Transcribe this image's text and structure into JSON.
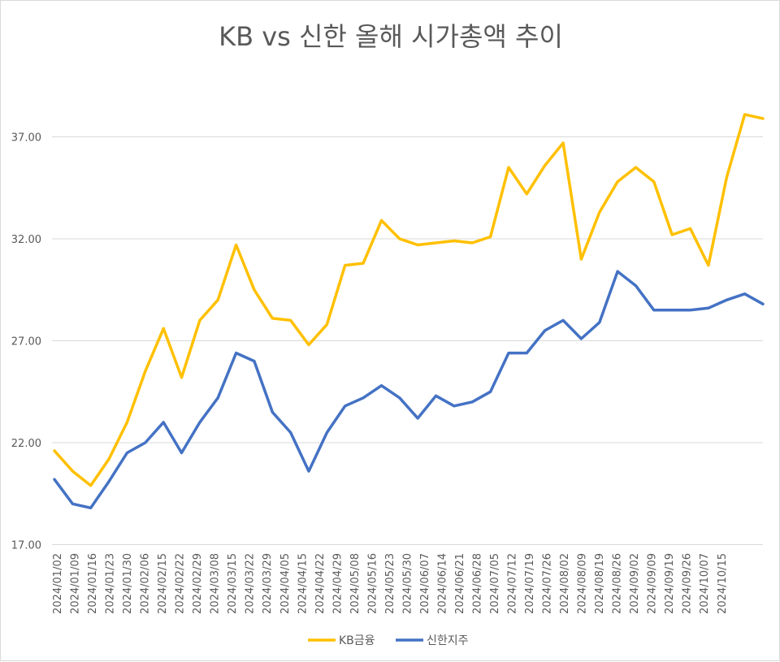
{
  "chart_data": {
    "type": "line",
    "title": "KB vs 신한 올해 시가총액 추이",
    "xlabel": "",
    "ylabel": "",
    "ylim": [
      17,
      39
    ],
    "yticks": [
      17,
      22,
      27,
      32,
      37
    ],
    "ytick_labels": [
      "17.00",
      "22.00",
      "27.00",
      "32.00",
      "37.00"
    ],
    "grid": true,
    "legend": "bottom",
    "categories": [
      "2024/01/02",
      "2024/01/09",
      "2024/01/16",
      "2024/01/23",
      "2024/01/30",
      "2024/02/06",
      "2024/02/15",
      "2024/02/22",
      "2024/02/29",
      "2024/03/08",
      "2024/03/15",
      "2024/03/22",
      "2024/03/29",
      "2024/04/05",
      "2024/04/15",
      "2024/04/22",
      "2024/04/29",
      "2024/05/08",
      "2024/05/16",
      "2024/05/23",
      "2024/05/30",
      "2024/06/07",
      "2024/06/14",
      "2024/06/21",
      "2024/06/28",
      "2024/07/05",
      "2024/07/12",
      "2024/07/19",
      "2024/07/26",
      "2024/08/02",
      "2024/08/09",
      "2024/08/19",
      "2024/08/26",
      "2024/09/02",
      "2024/09/09",
      "2024/09/19",
      "2024/09/26",
      "2024/10/07",
      "2024/10/15"
    ],
    "series": [
      {
        "name": "KB금융",
        "color": "#FFC000",
        "values": [
          21.6,
          20.6,
          19.9,
          21.2,
          23.0,
          25.5,
          27.6,
          25.2,
          28.0,
          29.0,
          31.7,
          29.5,
          28.1,
          28.0,
          26.8,
          27.8,
          30.7,
          30.8,
          32.9,
          32.0,
          31.7,
          31.8,
          31.9,
          31.8,
          32.1,
          35.5,
          34.2,
          35.6,
          36.7,
          31.0,
          33.3,
          34.8,
          35.5,
          34.8,
          32.2,
          32.5,
          30.7,
          35.0,
          38.1
        ],
        "values_tail": 37.9
      },
      {
        "name": "신한지주",
        "color": "#4472C4",
        "values": [
          20.2,
          19.0,
          18.8,
          20.1,
          21.5,
          22.0,
          23.0,
          21.5,
          23.0,
          24.2,
          26.4,
          26.0,
          23.5,
          22.5,
          20.6,
          22.5,
          23.8,
          24.2,
          24.8,
          24.2,
          23.2,
          24.3,
          23.8,
          24.0,
          24.5,
          26.4,
          26.4,
          27.5,
          28.0,
          27.1,
          27.9,
          30.4,
          29.7,
          28.5,
          28.5,
          28.5,
          28.6,
          29.0,
          29.3
        ],
        "values_tail": 28.8
      }
    ]
  }
}
